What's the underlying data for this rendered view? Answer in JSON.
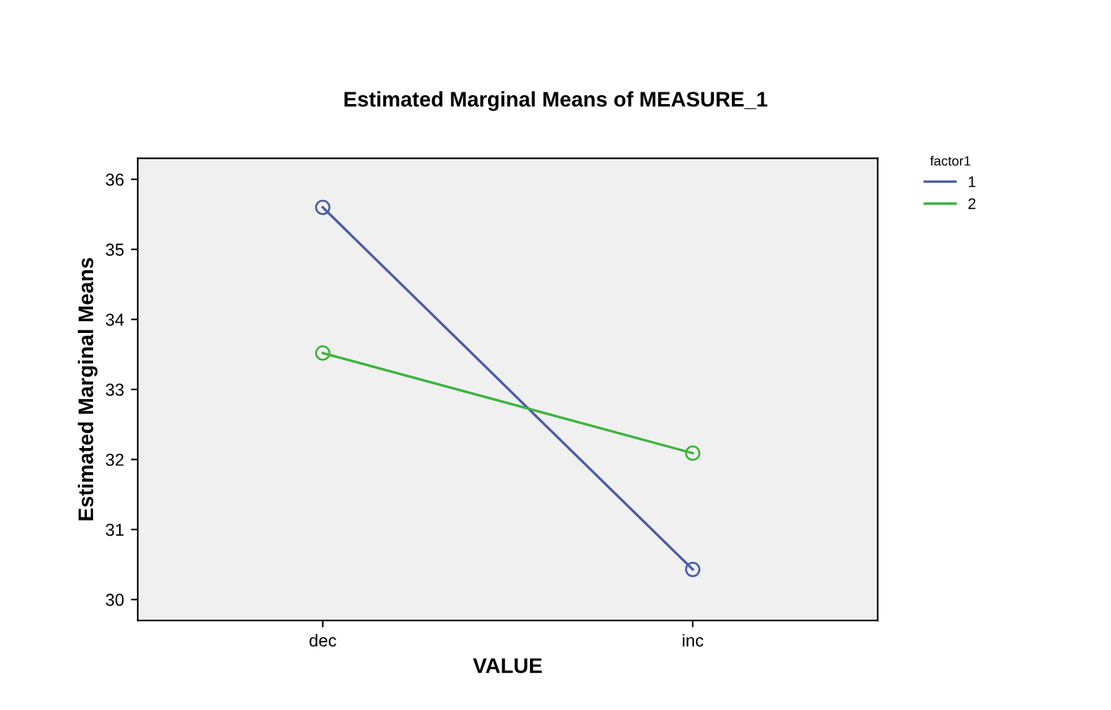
{
  "chart_data": {
    "type": "line",
    "title": "Estimated Marginal Means of MEASURE_1",
    "xlabel": "VALUE",
    "ylabel": "Estimated Marginal Means",
    "legend_title": "factor1",
    "categories": [
      "dec",
      "inc"
    ],
    "series": [
      {
        "name": "1",
        "color": "#4a5ca8",
        "values": [
          35.6,
          30.43
        ]
      },
      {
        "name": "2",
        "color": "#3cb43c",
        "values": [
          33.52,
          32.09
        ]
      }
    ],
    "ylim": [
      29.7,
      36.3
    ],
    "yticks": [
      30,
      31,
      32,
      33,
      34,
      35,
      36
    ],
    "grid": false,
    "legend": "top right",
    "marker": "circle",
    "line_style": "solid"
  }
}
